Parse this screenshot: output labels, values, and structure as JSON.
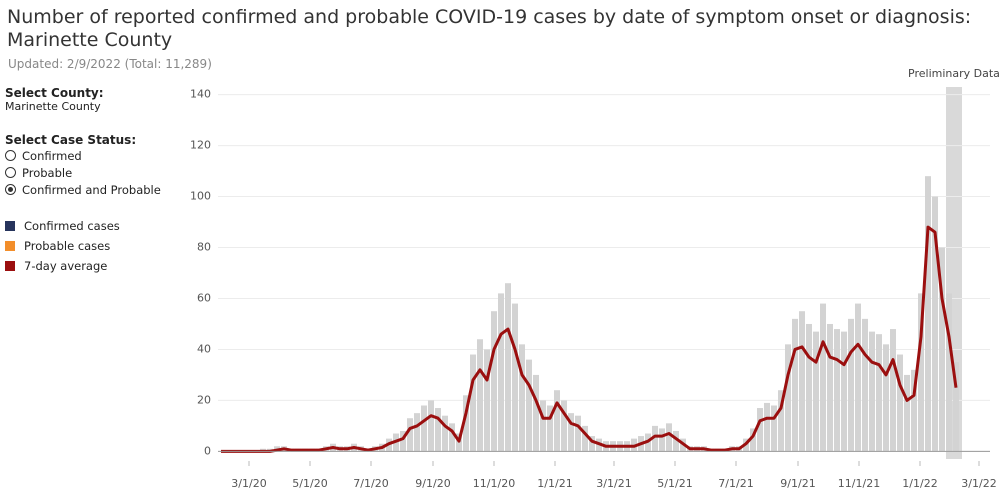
{
  "header": {
    "title": "Number of reported confirmed and probable COVID-19 cases by date of symptom onset or diagnosis:",
    "title_county": "Marinette County",
    "subtitle": "Updated: 2/9/2022 (Total: 11,289)"
  },
  "controls": {
    "county_label": "Select County:",
    "county_value": "Marinette County",
    "status_label": "Select Case Status:",
    "status_options": [
      "Confirmed",
      "Probable",
      "Confirmed and Probable"
    ],
    "status_selected": 2
  },
  "chart_data": {
    "type": "bar_line",
    "annotation": "Preliminary Data",
    "preliminary_range": [
      "1/27/22",
      "2/12/22"
    ],
    "bar_color": "#d3d3d3",
    "legend_only": [
      {
        "name": "Confirmed cases",
        "color": "#27345c"
      },
      {
        "name": "Probable cases",
        "color": "#f28e2b"
      }
    ],
    "x": [
      "2/2/20",
      "2/9/20",
      "2/16/20",
      "2/23/20",
      "3/1/20",
      "3/8/20",
      "3/15/20",
      "3/22/20",
      "3/29/20",
      "4/5/20",
      "4/12/20",
      "4/19/20",
      "4/26/20",
      "5/3/20",
      "5/10/20",
      "5/17/20",
      "5/24/20",
      "5/31/20",
      "6/7/20",
      "6/14/20",
      "6/21/20",
      "6/28/20",
      "7/5/20",
      "7/12/20",
      "7/19/20",
      "7/26/20",
      "8/2/20",
      "8/9/20",
      "8/16/20",
      "8/23/20",
      "8/30/20",
      "9/6/20",
      "9/13/20",
      "9/20/20",
      "9/27/20",
      "10/4/20",
      "10/11/20",
      "10/18/20",
      "10/25/20",
      "11/1/20",
      "11/8/20",
      "11/15/20",
      "11/22/20",
      "11/29/20",
      "12/6/20",
      "12/13/20",
      "12/20/20",
      "12/27/20",
      "1/3/21",
      "1/10/21",
      "1/17/21",
      "1/24/21",
      "1/31/21",
      "2/7/21",
      "2/14/21",
      "2/21/21",
      "2/28/21",
      "3/7/21",
      "3/14/21",
      "3/21/21",
      "3/28/21",
      "4/4/21",
      "4/11/21",
      "4/18/21",
      "4/25/21",
      "5/2/21",
      "5/9/21",
      "5/16/21",
      "5/23/21",
      "5/30/21",
      "6/6/21",
      "6/13/21",
      "6/20/21",
      "6/27/21",
      "7/4/21",
      "7/11/21",
      "7/18/21",
      "7/25/21",
      "8/1/21",
      "8/8/21",
      "8/15/21",
      "8/22/21",
      "8/29/21",
      "9/5/21",
      "9/12/21",
      "9/19/21",
      "9/26/21",
      "10/3/21",
      "10/10/21",
      "10/17/21",
      "10/24/21",
      "10/31/21",
      "11/7/21",
      "11/14/21",
      "11/21/21",
      "11/28/21",
      "12/5/21",
      "12/12/21",
      "12/19/21",
      "12/26/21",
      "1/2/22",
      "1/9/22",
      "1/16/22",
      "1/23/22",
      "1/30/22",
      "2/6/22"
    ],
    "values": [
      0,
      0,
      0,
      0,
      0,
      0,
      1,
      1,
      2,
      2,
      1,
      1,
      1,
      1,
      1,
      2,
      3,
      2,
      2,
      3,
      2,
      1,
      2,
      3,
      5,
      7,
      8,
      13,
      15,
      18,
      20,
      17,
      14,
      11,
      7,
      22,
      38,
      44,
      40,
      55,
      62,
      66,
      58,
      42,
      36,
      30,
      20,
      18,
      24,
      20,
      15,
      14,
      10,
      6,
      5,
      4,
      4,
      4,
      4,
      5,
      6,
      7,
      10,
      9,
      11,
      8,
      5,
      2,
      2,
      2,
      1,
      1,
      1,
      2,
      2,
      5,
      9,
      17,
      19,
      18,
      24,
      42,
      52,
      55,
      50,
      47,
      58,
      50,
      48,
      47,
      52,
      58,
      52,
      47,
      46,
      42,
      48,
      38,
      30,
      32,
      62,
      108,
      100,
      80,
      62,
      35
    ],
    "series": [
      {
        "name": "7-day average",
        "color": "#9b0f0f",
        "values": [
          0,
          0,
          0,
          0,
          0,
          0,
          0,
          0,
          0.5,
          1,
          0.5,
          0.5,
          0.5,
          0.5,
          0.5,
          1,
          1.5,
          1,
          1,
          1.5,
          1,
          0.5,
          1,
          1.5,
          3,
          4,
          5,
          9,
          10,
          12,
          14,
          13,
          10,
          8,
          4,
          15,
          28,
          32,
          28,
          40,
          46,
          48,
          40,
          30,
          26,
          20,
          13,
          13,
          19,
          15,
          11,
          10,
          7,
          4,
          3,
          2,
          2,
          2,
          2,
          2,
          3,
          4,
          6,
          6,
          7,
          5,
          3,
          1,
          1,
          1,
          0.5,
          0.5,
          0.5,
          1,
          1,
          3,
          6,
          12,
          13,
          13,
          17,
          30,
          40,
          41,
          37,
          35,
          43,
          37,
          36,
          34,
          39,
          42,
          38,
          35,
          34,
          30,
          36,
          26,
          20,
          22,
          45,
          88,
          86,
          60,
          45,
          25
        ]
      }
    ],
    "xlim": [
      "1/30/20",
      "3/12/22"
    ],
    "xticks": [
      "3/1/20",
      "5/1/20",
      "7/1/20",
      "9/1/20",
      "11/1/20",
      "1/1/21",
      "3/1/21",
      "5/1/21",
      "7/1/21",
      "9/1/21",
      "11/1/21",
      "1/1/22",
      "3/1/22"
    ],
    "ylim": [
      -3,
      143
    ],
    "yticks": [
      0,
      20,
      40,
      60,
      80,
      100,
      120,
      140
    ],
    "grid": true
  }
}
